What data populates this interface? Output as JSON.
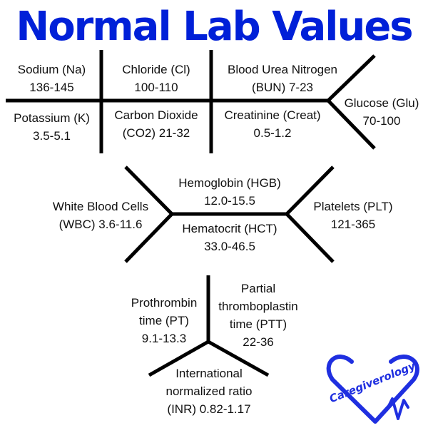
{
  "title": "Normal Lab Values",
  "colors": {
    "title": "#0020d8",
    "lines": "#000000",
    "text": "#111111",
    "logo": "#1f2fe0"
  },
  "bmp": {
    "sodium": {
      "name": "Sodium (Na)",
      "range": "136-145"
    },
    "chloride": {
      "name": "Chloride (Cl)",
      "range": "100-110"
    },
    "bun": {
      "name": "Blood Urea Nitrogen",
      "range": "(BUN) 7-23"
    },
    "potassium": {
      "name": "Potassium (K)",
      "range": "3.5-5.1"
    },
    "co2": {
      "name": "Carbon Dioxide",
      "range": "(CO2) 21-32"
    },
    "creatinine": {
      "name": "Creatinine (Creat)",
      "range": "0.5-1.2"
    },
    "glucose": {
      "name": "Glucose (Glu)",
      "range": "70-100"
    }
  },
  "cbc": {
    "wbc": {
      "name": "White Blood Cells",
      "range": "(WBC) 3.6-11.6"
    },
    "hgb": {
      "name": "Hemoglobin (HGB)",
      "range": "12.0-15.5"
    },
    "hct": {
      "name": "Hematocrit (HCT)",
      "range": "33.0-46.5"
    },
    "plt": {
      "name": "Platelets (PLT)",
      "range": "121-365"
    }
  },
  "coag": {
    "pt": {
      "line1": "Prothrombin",
      "line2": "time (PT)",
      "range": "9.1-13.3"
    },
    "ptt": {
      "line1": "Partial",
      "line2": "thromboplastin",
      "line3": "time (PTT)",
      "range": "22-36"
    },
    "inr": {
      "line1": "International",
      "line2": "normalized ratio",
      "range": "(INR) 0.82-1.17"
    }
  },
  "logo": {
    "text": "Caregiverology",
    "icon": "heart-pulse-icon"
  }
}
